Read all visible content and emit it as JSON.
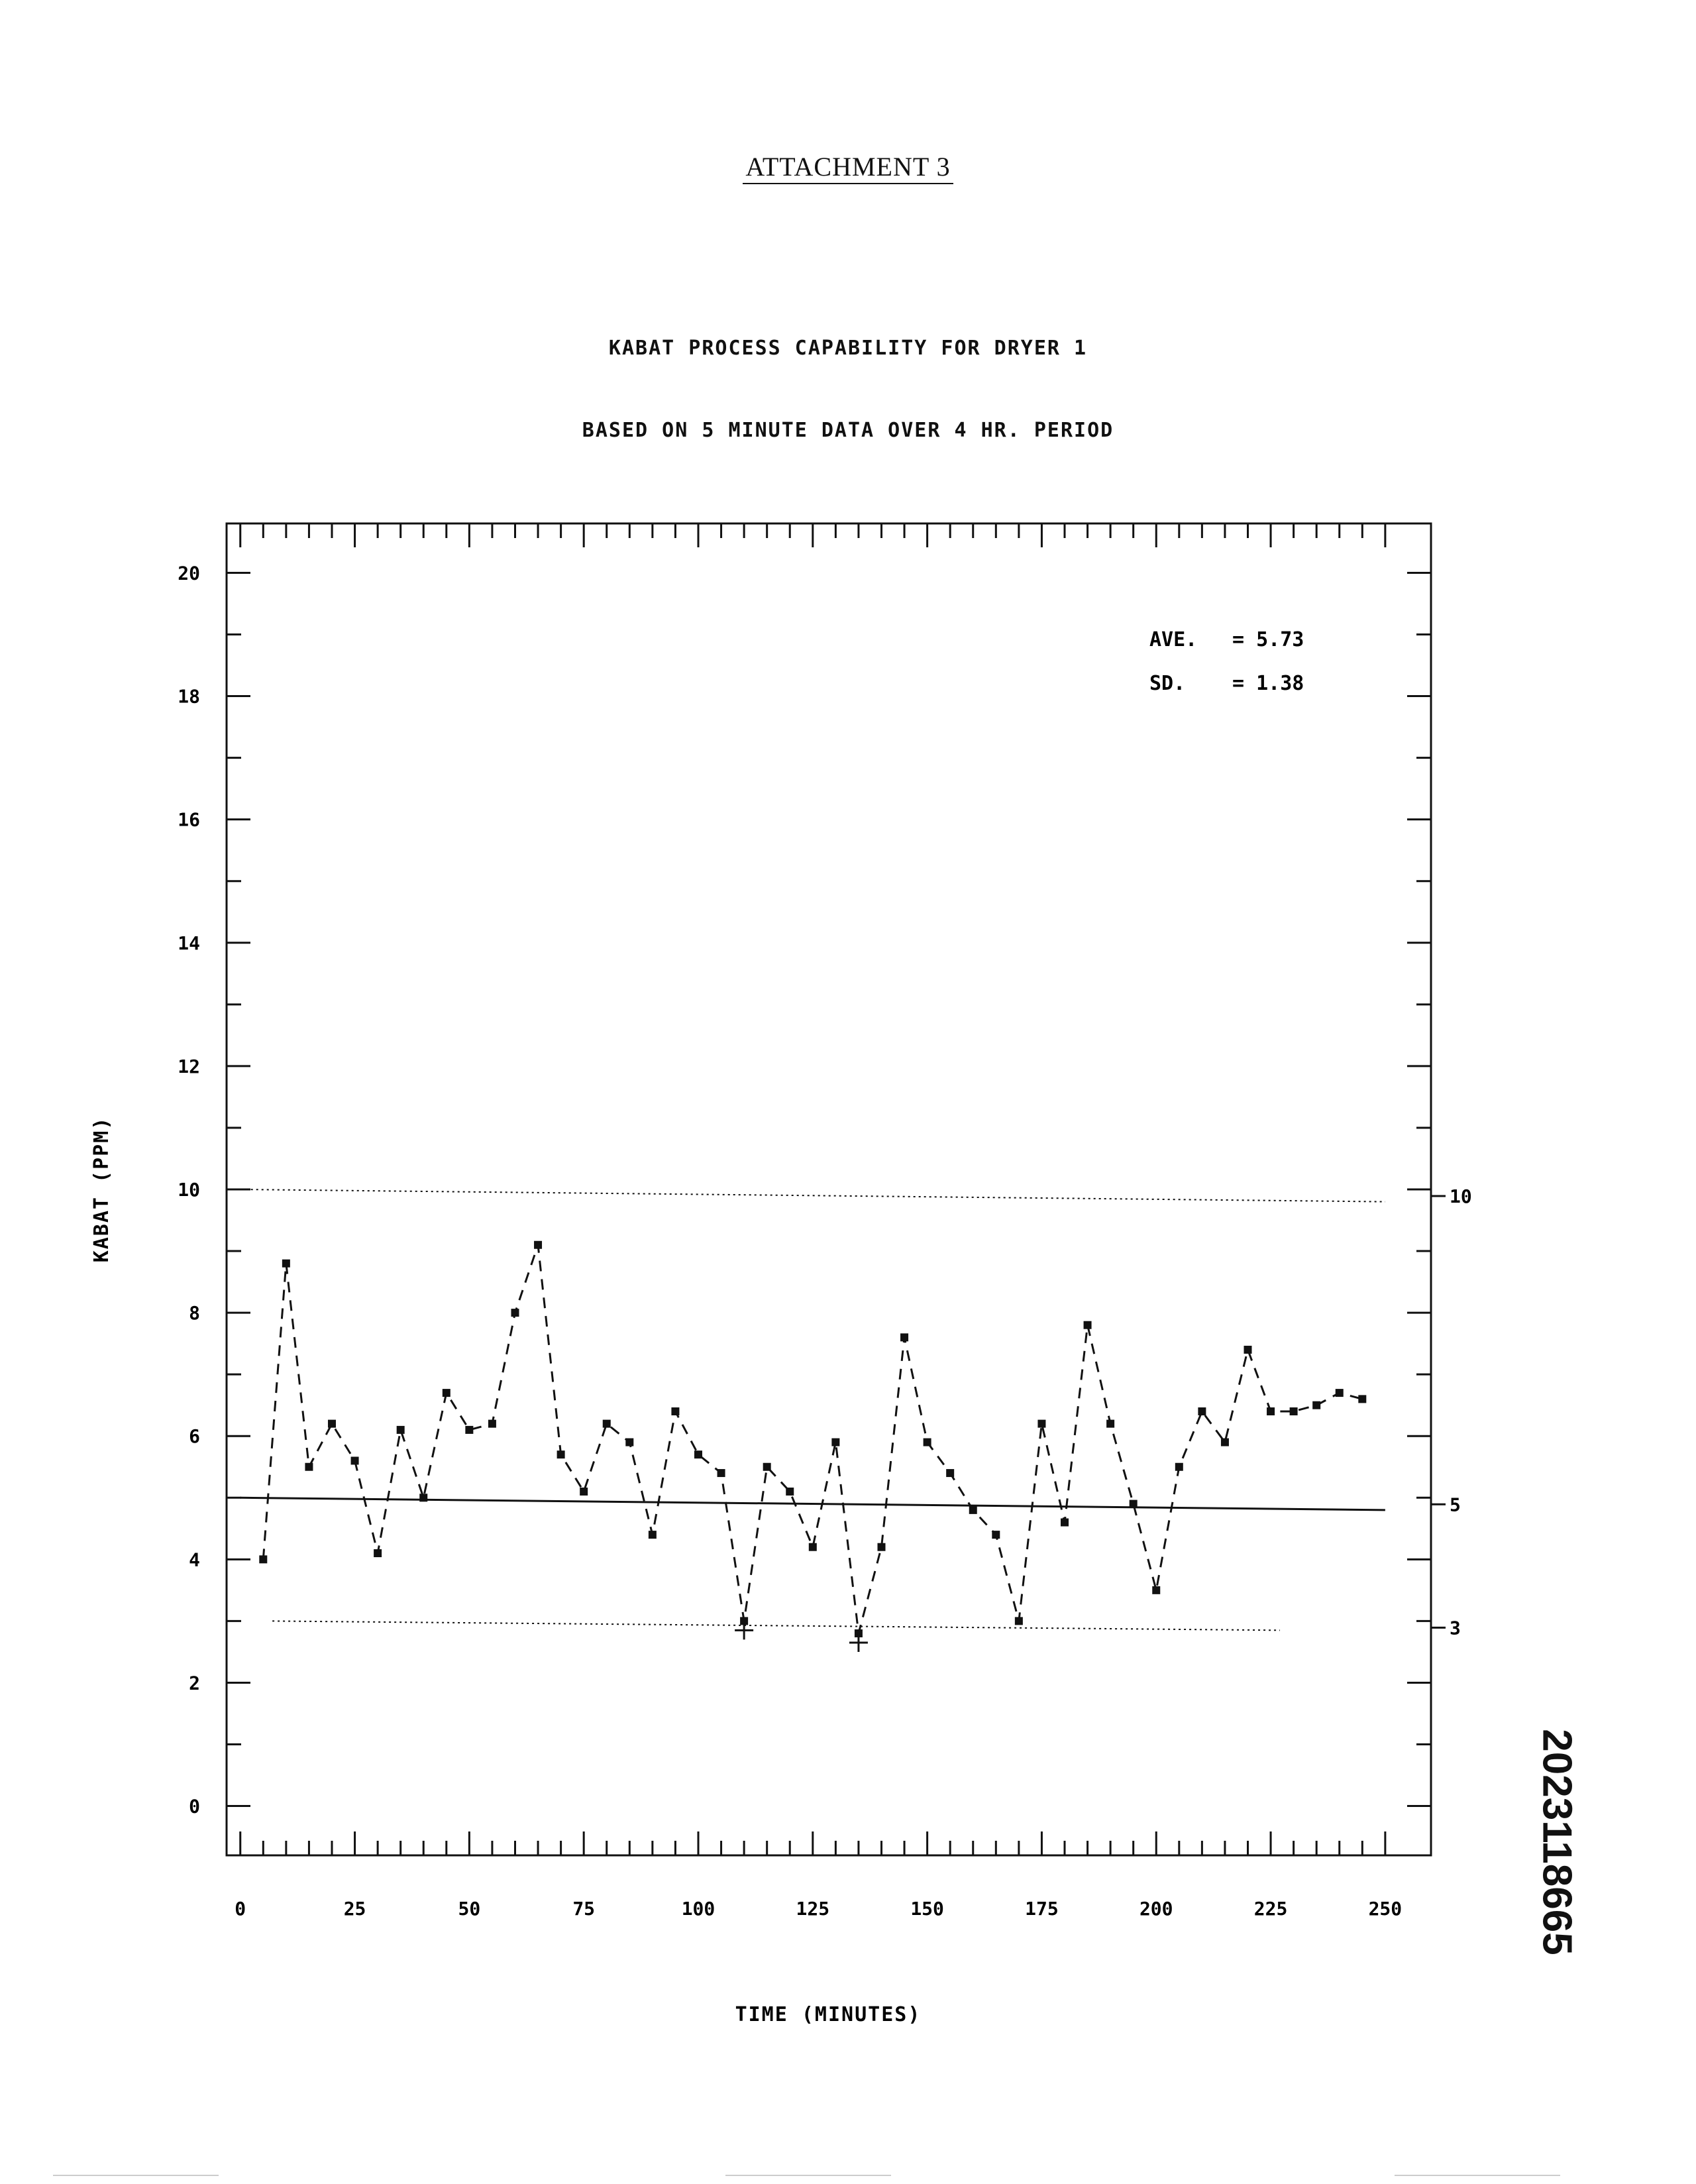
{
  "header": {
    "attachment": "ATTACHMENT 3"
  },
  "document_id": "2023118665",
  "chart_data": {
    "type": "line",
    "title": "KABAT PROCESS CAPABILITY FOR DRYER 1",
    "subtitle": "BASED ON 5 MINUTE DATA OVER 4 HR. PERIOD",
    "xlabel": "TIME (MINUTES)",
    "ylabel": "KABAT (PPM)",
    "xlim": [
      -3,
      260
    ],
    "ylim": [
      -0.8,
      20.8
    ],
    "x_ticks": [
      0,
      25,
      50,
      75,
      100,
      125,
      150,
      175,
      200,
      225,
      250
    ],
    "x_tick_labels": [
      "0",
      "25",
      "50",
      "75",
      "100",
      "125",
      "150",
      "175",
      "200",
      "225",
      "250"
    ],
    "y_ticks": [
      0,
      2,
      4,
      6,
      8,
      10,
      12,
      14,
      16,
      18,
      20
    ],
    "y_tick_labels": [
      "0",
      "2",
      "4",
      "6",
      "8",
      "10",
      "12",
      "14",
      "16",
      "18",
      "20"
    ],
    "right_axis_labels": [
      {
        "value": 10,
        "label": "10"
      },
      {
        "value": 5,
        "label": "5"
      },
      {
        "value": 3,
        "label": "3"
      }
    ],
    "series": [
      {
        "style": "dashed-with-markers",
        "x": [
          5,
          10,
          15,
          20,
          25,
          30,
          35,
          40,
          45,
          50,
          55,
          60,
          65,
          70,
          75,
          80,
          85,
          90,
          95,
          100,
          105,
          110,
          115,
          120,
          125,
          130,
          135,
          140,
          145,
          150,
          155,
          160,
          165,
          170,
          175,
          180,
          185,
          190,
          195,
          200,
          205,
          210,
          215,
          220,
          225,
          230,
          235,
          240,
          245
        ],
        "y": [
          4.0,
          8.8,
          5.5,
          6.2,
          5.6,
          4.1,
          6.1,
          5.0,
          6.7,
          6.1,
          6.2,
          8.0,
          9.1,
          5.7,
          5.1,
          6.2,
          5.9,
          4.4,
          6.4,
          5.7,
          5.4,
          3.0,
          5.5,
          5.1,
          4.2,
          5.9,
          2.8,
          4.2,
          7.6,
          5.9,
          5.4,
          4.8,
          4.4,
          3.0,
          6.2,
          4.6,
          7.8,
          6.2,
          4.9,
          3.5,
          5.5,
          6.4,
          5.9,
          7.4,
          6.4,
          6.4,
          6.5,
          6.7,
          6.6
        ]
      }
    ],
    "lines": [
      {
        "style": "solid",
        "x": [
          0,
          250
        ],
        "y": [
          5.0,
          4.8
        ]
      },
      {
        "style": "dotted",
        "x": [
          0,
          250
        ],
        "y": [
          10.0,
          9.8
        ]
      },
      {
        "style": "dotted",
        "x": [
          7,
          227
        ],
        "y": [
          3.0,
          2.85
        ]
      }
    ],
    "out_of_limit_markers": [
      {
        "x": 110,
        "y": 2.85
      },
      {
        "x": 135,
        "y": 2.65
      }
    ],
    "annotations": [
      {
        "label": "AVE.",
        "value": "= 5.73"
      },
      {
        "label": "SD.",
        "value": "= 1.38"
      }
    ],
    "grid": false,
    "legend": "none"
  }
}
